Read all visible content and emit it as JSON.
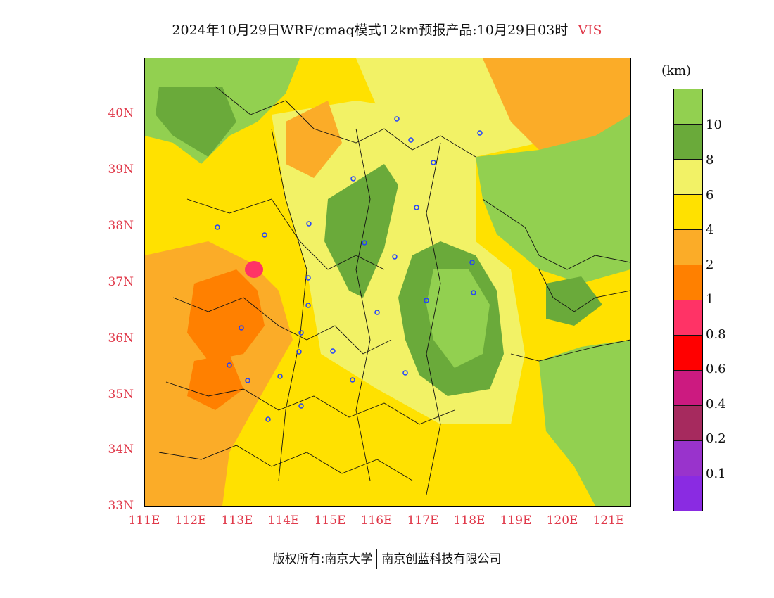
{
  "title": {
    "main": "2024年10月29日WRF/cmaq模式12km预报产品:10月29日03时",
    "variable": "VIS"
  },
  "latitude_labels": [
    "40N",
    "39N",
    "38N",
    "37N",
    "36N",
    "35N",
    "34N",
    "33N"
  ],
  "longitude_labels": [
    "111E",
    "112E",
    "113E",
    "114E",
    "115E",
    "116E",
    "117E",
    "118E",
    "119E",
    "120E",
    "121E"
  ],
  "legend": {
    "unit": "(km)",
    "levels": [
      {
        "label": "10",
        "color": "#92d050"
      },
      {
        "label": "8",
        "color": "#6aaa3a"
      },
      {
        "label": "6",
        "color": "#f2f266"
      },
      {
        "label": "4",
        "color": "#ffe100"
      },
      {
        "label": "2",
        "color": "#fbac28"
      },
      {
        "label": "1",
        "color": "#ff8000"
      },
      {
        "label": "0.8",
        "color": "#ff3366"
      },
      {
        "label": "0.6",
        "color": "#ff0000"
      },
      {
        "label": "0.4",
        "color": "#cc1a80"
      },
      {
        "label": "0.2",
        "color": "#a62a5e"
      },
      {
        "label": "0.1",
        "color": "#9933cc"
      },
      {
        "label": "",
        "color": "#8a2be2"
      }
    ]
  },
  "footer": {
    "copyright": "版权所有:南京大学",
    "company": "南京创蓝科技有限公司"
  }
}
